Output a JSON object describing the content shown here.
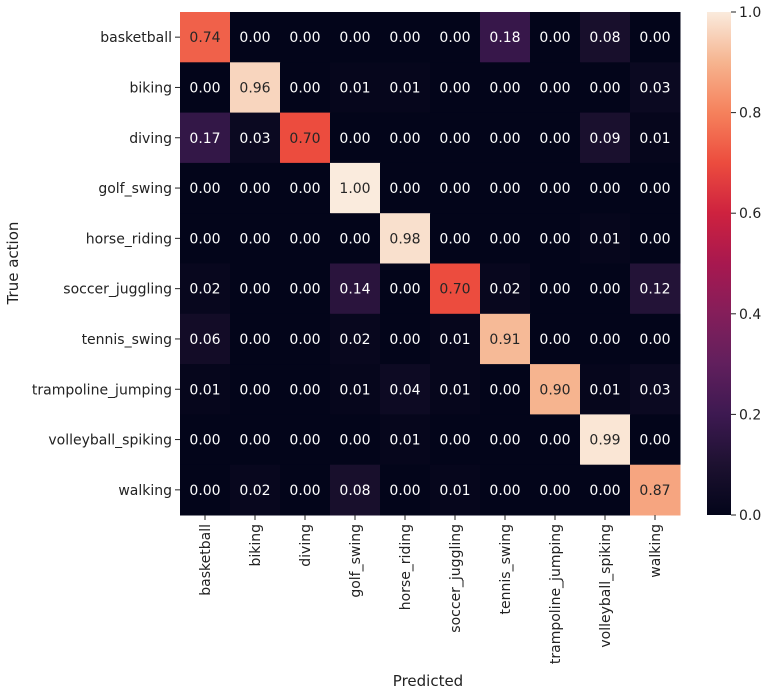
{
  "chart_data": {
    "type": "heatmap",
    "title": "",
    "xlabel": "Predicted",
    "ylabel": "True action",
    "x_categories": [
      "basketball",
      "biking",
      "diving",
      "golf_swing",
      "horse_riding",
      "soccer_juggling",
      "tennis_swing",
      "trampoline_jumping",
      "volleyball_spiking",
      "walking"
    ],
    "y_categories": [
      "basketball",
      "biking",
      "diving",
      "golf_swing",
      "horse_riding",
      "soccer_juggling",
      "tennis_swing",
      "trampoline_jumping",
      "volleyball_spiking",
      "walking"
    ],
    "values": [
      [
        0.74,
        0.0,
        0.0,
        0.0,
        0.0,
        0.0,
        0.18,
        0.0,
        0.08,
        0.0
      ],
      [
        0.0,
        0.96,
        0.0,
        0.01,
        0.01,
        0.0,
        0.0,
        0.0,
        0.0,
        0.03
      ],
      [
        0.17,
        0.03,
        0.7,
        0.0,
        0.0,
        0.0,
        0.0,
        0.0,
        0.09,
        0.01
      ],
      [
        0.0,
        0.0,
        0.0,
        1.0,
        0.0,
        0.0,
        0.0,
        0.0,
        0.0,
        0.0
      ],
      [
        0.0,
        0.0,
        0.0,
        0.0,
        0.98,
        0.0,
        0.0,
        0.0,
        0.01,
        0.0
      ],
      [
        0.02,
        0.0,
        0.0,
        0.14,
        0.0,
        0.7,
        0.02,
        0.0,
        0.0,
        0.12
      ],
      [
        0.06,
        0.0,
        0.0,
        0.02,
        0.0,
        0.01,
        0.91,
        0.0,
        0.0,
        0.0
      ],
      [
        0.01,
        0.0,
        0.0,
        0.01,
        0.04,
        0.01,
        0.0,
        0.9,
        0.01,
        0.03
      ],
      [
        0.0,
        0.0,
        0.0,
        0.0,
        0.01,
        0.0,
        0.0,
        0.0,
        0.99,
        0.0
      ],
      [
        0.0,
        0.02,
        0.0,
        0.08,
        0.0,
        0.01,
        0.0,
        0.0,
        0.0,
        0.87
      ]
    ],
    "value_format": "0.00",
    "colormap": "rocket",
    "colorbar": {
      "range": [
        0.0,
        1.0
      ],
      "ticks": [
        "0.0",
        "0.2",
        "0.4",
        "0.6",
        "0.8",
        "1.0"
      ]
    }
  }
}
